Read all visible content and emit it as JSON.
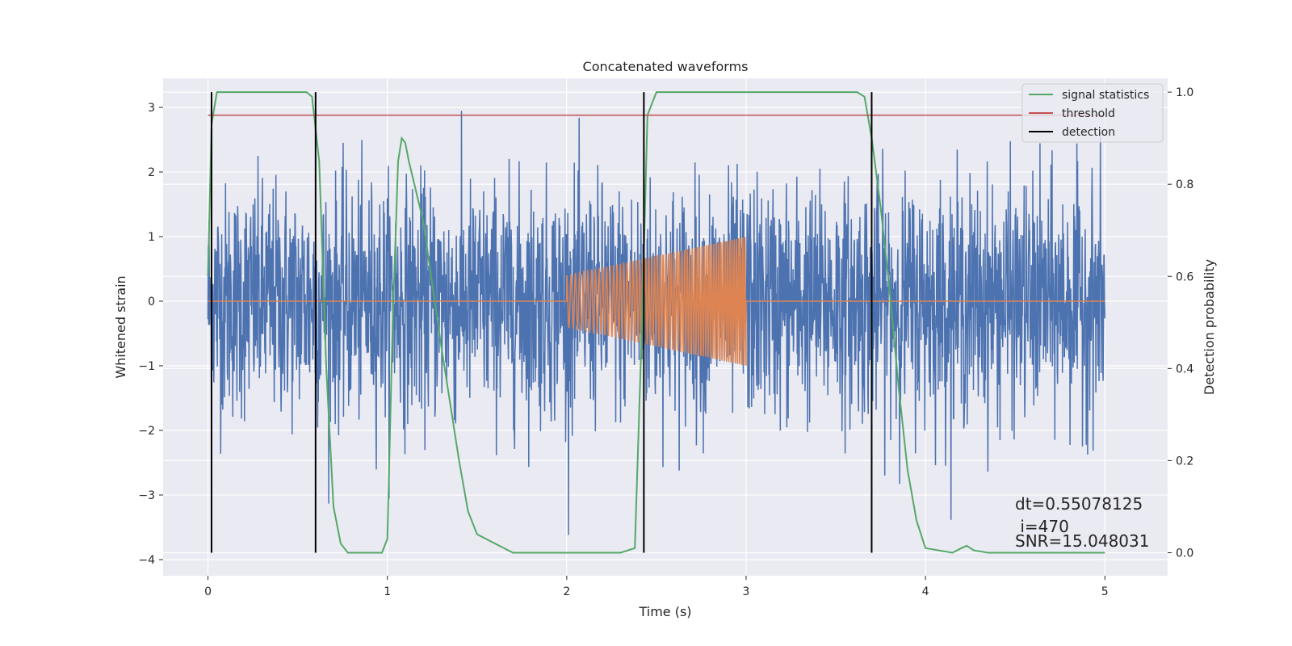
{
  "chart_data": {
    "type": "line",
    "title": "Concatenated waveforms",
    "xlabel": "Time (s)",
    "ylabel_left": "Whitened strain",
    "ylabel_right": "Detection probability",
    "xlim": [
      -0.25,
      5.35
    ],
    "ylim_left": [
      -4.25,
      3.45
    ],
    "ylim_right": [
      -0.05,
      1.03
    ],
    "x_ticks": [
      0,
      1,
      2,
      3,
      4,
      5
    ],
    "y_ticks_left": [
      -4,
      -3,
      -2,
      -1,
      0,
      1,
      2,
      3
    ],
    "y_ticks_right": [
      0.0,
      0.2,
      0.4,
      0.6,
      0.8,
      1.0
    ],
    "y_tick_labels_left": [
      "−4",
      "−3",
      "−2",
      "−1",
      "0",
      "1",
      "2",
      "3"
    ],
    "y_tick_labels_right": [
      "0.0",
      "0.2",
      "0.4",
      "0.6",
      "0.8",
      "1.0"
    ],
    "grid": true,
    "background": "#eaeaf2",
    "legend_position": "top-right",
    "series": [
      {
        "name": "",
        "axis": "left",
        "kind": "noise",
        "color": "#4c72b0",
        "x_range": [
          0,
          5
        ],
        "amplitude_std": 0.9,
        "min": -3.9,
        "max": 3.1
      },
      {
        "name": "",
        "axis": "left",
        "kind": "chirp",
        "color": "#dd8452",
        "x_range": [
          0,
          5
        ],
        "chirp_start": 2.0,
        "chirp_end": 3.0,
        "amp_start": 0.4,
        "amp_end": 1.0,
        "freq_start": 40,
        "freq_end": 85
      },
      {
        "name": "signal statistics",
        "axis": "right",
        "color": "#55a868",
        "x": [
          0.0,
          0.02,
          0.05,
          0.1,
          0.2,
          0.5,
          0.55,
          0.58,
          0.62,
          0.66,
          0.7,
          0.74,
          0.78,
          0.9,
          0.97,
          1.0,
          1.03,
          1.06,
          1.08,
          1.1,
          1.12,
          1.2,
          1.3,
          1.4,
          1.45,
          1.5,
          1.6,
          1.7,
          2.0,
          2.3,
          2.38,
          2.42,
          2.45,
          2.5,
          3.0,
          3.55,
          3.62,
          3.66,
          3.7,
          3.75,
          3.8,
          3.85,
          3.9,
          3.95,
          4.0,
          4.15,
          4.2,
          4.23,
          4.27,
          4.35,
          5.0
        ],
        "y": [
          0.6,
          0.93,
          1.0,
          1.0,
          1.0,
          1.0,
          1.0,
          0.99,
          0.85,
          0.4,
          0.1,
          0.02,
          0.0,
          0.0,
          0.0,
          0.03,
          0.5,
          0.85,
          0.9,
          0.89,
          0.85,
          0.72,
          0.45,
          0.2,
          0.09,
          0.04,
          0.02,
          0.0,
          0.0,
          0.0,
          0.01,
          0.5,
          0.95,
          1.0,
          1.0,
          1.0,
          1.0,
          0.99,
          0.9,
          0.75,
          0.57,
          0.36,
          0.18,
          0.07,
          0.01,
          0.0,
          0.01,
          0.015,
          0.005,
          0.0,
          0.0
        ]
      },
      {
        "name": "threshold",
        "axis": "right",
        "color": "#c44e52",
        "x": [
          0.0,
          5.0
        ],
        "y": [
          0.95,
          0.95
        ]
      }
    ],
    "detections": {
      "name": "detection",
      "color": "#000000",
      "x": [
        0.02,
        0.6,
        2.43,
        3.7
      ],
      "y_bottom": 0.0,
      "y_top": 1.0
    },
    "annotations": [
      "dt=0.55078125",
      " i=470",
      "SNR=15.048031"
    ]
  }
}
